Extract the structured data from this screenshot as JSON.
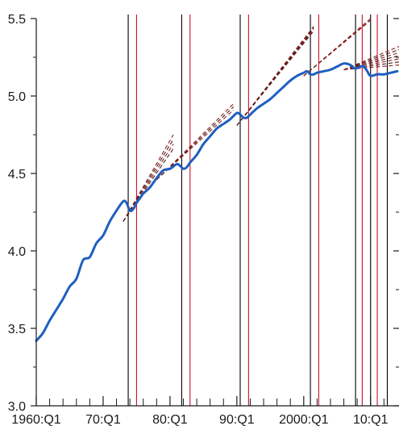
{
  "chart_data": {
    "type": "line",
    "title": "",
    "xlabel": "",
    "ylabel": "",
    "xlim": [
      1960.0,
      2014.25
    ],
    "ylim": [
      3.0,
      5.5
    ],
    "grid": false,
    "legend": "none",
    "x_ticks": {
      "major": [
        {
          "x": 1960,
          "label": "1960:Q1"
        },
        {
          "x": 1970,
          "label": "70:Q1"
        },
        {
          "x": 1980,
          "label": "80:Q1"
        },
        {
          "x": 1990,
          "label": "90:Q1"
        },
        {
          "x": 2000,
          "label": "2000:Q1"
        },
        {
          "x": 2010,
          "label": "10:Q1"
        }
      ],
      "minor": [
        1962,
        1964,
        1966,
        1968,
        1972,
        1974,
        1976,
        1978,
        1982,
        1984,
        1986,
        1988,
        1992,
        1994,
        1996,
        1998,
        2002,
        2004,
        2006,
        2008,
        2012
      ]
    },
    "y_ticks": {
      "major": [
        {
          "y": 3.0,
          "label": "3.0"
        },
        {
          "y": 3.5,
          "label": "3.5"
        },
        {
          "y": 4.0,
          "label": "4.0"
        },
        {
          "y": 4.5,
          "label": "4.5"
        },
        {
          "y": 5.0,
          "label": "5.0"
        },
        {
          "y": 5.5,
          "label": "5.5"
        }
      ],
      "minor": [
        3.25,
        3.75,
        4.25,
        4.75,
        5.25
      ]
    },
    "series": [
      {
        "role": "actual",
        "color": "#1f5fbf",
        "x": [
          1960.0,
          1961.0,
          1962.0,
          1963.0,
          1964.0,
          1965.0,
          1966.0,
          1967.0,
          1968.0,
          1969.0,
          1970.0,
          1971.0,
          1972.0,
          1973.0,
          1973.5,
          1974.0,
          1974.5,
          1975.0,
          1975.5,
          1976.0,
          1977.0,
          1978.0,
          1979.0,
          1980.0,
          1981.0,
          1981.5,
          1982.0,
          1982.5,
          1983.0,
          1984.0,
          1985.0,
          1986.0,
          1987.0,
          1988.0,
          1989.0,
          1990.0,
          1990.5,
          1991.0,
          1991.5,
          1992.0,
          1993.0,
          1994.0,
          1995.0,
          1996.0,
          1997.0,
          1998.0,
          1999.0,
          2000.0,
          2000.5,
          2001.0,
          2001.5,
          2002.0,
          2003.0,
          2004.0,
          2005.0,
          2006.0,
          2007.0,
          2007.5,
          2008.0,
          2008.5,
          2009.0,
          2009.5,
          2010.0,
          2011.0,
          2012.0,
          2013.0,
          2014.0
        ],
        "y": [
          3.42,
          3.47,
          3.55,
          3.62,
          3.69,
          3.77,
          3.82,
          3.94,
          3.96,
          4.05,
          4.1,
          4.19,
          4.26,
          4.32,
          4.31,
          4.26,
          4.27,
          4.31,
          4.34,
          4.37,
          4.41,
          4.47,
          4.52,
          4.53,
          4.56,
          4.55,
          4.53,
          4.54,
          4.57,
          4.62,
          4.69,
          4.74,
          4.79,
          4.82,
          4.85,
          4.89,
          4.88,
          4.86,
          4.86,
          4.88,
          4.92,
          4.95,
          4.98,
          5.02,
          5.06,
          5.1,
          5.13,
          5.15,
          5.16,
          5.14,
          5.14,
          5.15,
          5.16,
          5.17,
          5.19,
          5.21,
          5.2,
          5.18,
          5.18,
          5.19,
          5.19,
          5.16,
          5.13,
          5.14,
          5.14,
          5.15,
          5.16
        ]
      }
    ],
    "trend_lines": [
      {
        "color": "#8c1c1c",
        "x": [
          1973.0,
          1980.5
        ],
        "y": [
          4.19,
          4.75
        ]
      },
      {
        "color": "#4a1a1a",
        "x": [
          1973.0,
          1980.5
        ],
        "y": [
          4.19,
          4.72
        ]
      },
      {
        "color": "#8c1c1c",
        "x": [
          1973.0,
          1980.5
        ],
        "y": [
          4.19,
          4.69
        ]
      },
      {
        "color": "#4a1a1a",
        "x": [
          1973.0,
          1980.5
        ],
        "y": [
          4.19,
          4.66
        ]
      },
      {
        "color": "#8c1c1c",
        "x": [
          1978.0,
          1989.5
        ],
        "y": [
          4.46,
          4.95
        ]
      },
      {
        "color": "#4a1a1a",
        "x": [
          1978.0,
          1989.5
        ],
        "y": [
          4.46,
          4.93
        ]
      },
      {
        "color": "#8c1c1c",
        "x": [
          1978.0,
          1989.5
        ],
        "y": [
          4.46,
          4.91
        ]
      },
      {
        "color": "#8c1c1c",
        "x": [
          1990.0,
          2001.5
        ],
        "y": [
          4.81,
          5.45
        ]
      },
      {
        "color": "#4a1a1a",
        "x": [
          1990.0,
          2001.5
        ],
        "y": [
          4.81,
          5.44
        ]
      },
      {
        "color": "#8c1c1c",
        "x": [
          1990.0,
          2001.5
        ],
        "y": [
          4.81,
          5.43
        ]
      },
      {
        "color": "#4a1a1a",
        "x": [
          1990.0,
          2001.5
        ],
        "y": [
          4.81,
          5.42
        ]
      },
      {
        "color": "#8c1c1c",
        "x": [
          2000.0,
          2010.0
        ],
        "y": [
          5.13,
          5.5
        ]
      },
      {
        "color": "#4a1a1a",
        "x": [
          2000.0,
          2010.0
        ],
        "y": [
          5.13,
          5.49
        ]
      },
      {
        "color": "#8c1c1c",
        "x": [
          2000.0,
          2009.5
        ],
        "y": [
          5.13,
          5.47
        ]
      },
      {
        "color": "#8c1c1c",
        "x": [
          2006.0,
          2014.25
        ],
        "y": [
          5.17,
          5.32
        ]
      },
      {
        "color": "#4a1a1a",
        "x": [
          2006.0,
          2014.25
        ],
        "y": [
          5.17,
          5.3
        ]
      },
      {
        "color": "#8c1c1c",
        "x": [
          2006.0,
          2014.25
        ],
        "y": [
          5.17,
          5.28
        ]
      },
      {
        "color": "#4a1a1a",
        "x": [
          2006.0,
          2014.25
        ],
        "y": [
          5.17,
          5.26
        ]
      },
      {
        "color": "#8c1c1c",
        "x": [
          2006.0,
          2014.25
        ],
        "y": [
          5.17,
          5.24
        ]
      },
      {
        "color": "#4a1a1a",
        "x": [
          2006.0,
          2014.25
        ],
        "y": [
          5.17,
          5.22
        ]
      },
      {
        "color": "#8c1c1c",
        "x": [
          2006.0,
          2014.25
        ],
        "y": [
          5.17,
          5.2
        ]
      }
    ],
    "vertical_markers": [
      {
        "x": 1973.75,
        "color": "#000000"
      },
      {
        "x": 1975.0,
        "color": "#c8102e"
      },
      {
        "x": 1981.75,
        "color": "#000000"
      },
      {
        "x": 1983.0,
        "color": "#c8102e"
      },
      {
        "x": 1990.5,
        "color": "#000000"
      },
      {
        "x": 1991.75,
        "color": "#c8102e"
      },
      {
        "x": 2001.0,
        "color": "#000000"
      },
      {
        "x": 2002.25,
        "color": "#c8102e"
      },
      {
        "x": 2007.75,
        "color": "#000000"
      },
      {
        "x": 2008.75,
        "color": "#c8102e"
      },
      {
        "x": 2010.0,
        "color": "#000000"
      },
      {
        "x": 2011.0,
        "color": "#c8102e"
      },
      {
        "x": 2012.5,
        "color": "#000000"
      }
    ]
  }
}
